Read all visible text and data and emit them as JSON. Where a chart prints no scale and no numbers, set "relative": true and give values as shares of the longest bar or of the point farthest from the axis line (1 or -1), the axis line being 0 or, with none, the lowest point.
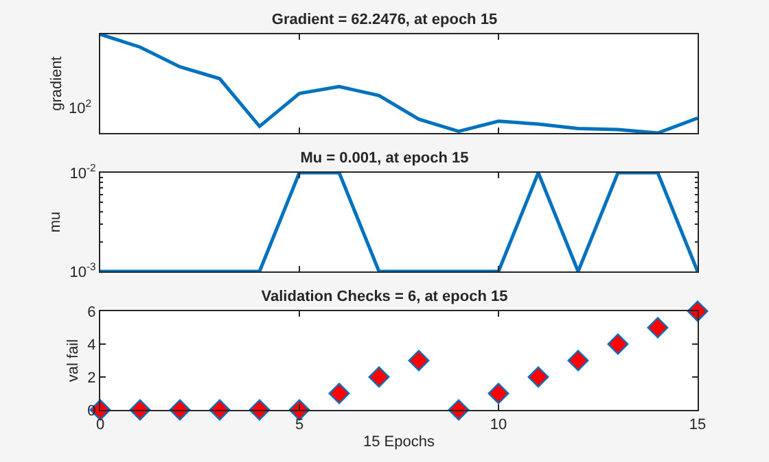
{
  "chart_data": [
    {
      "type": "line",
      "title": "Gradient = 62.2476, at epoch 15",
      "ylabel": "gradient",
      "relative": true,
      "tick_labels": "y",
      "grid": false,
      "marker": "none",
      "annotations": [
        "10$^{2}$"
      ],
      "x": [
        0,
        1,
        2,
        3,
        4,
        5,
        6,
        7,
        8,
        9,
        10,
        11,
        12,
        13,
        14,
        15
      ],
      "series": [
        {
          "color": "#0072bd",
          "values": [
            1,
            0.87,
            0.67,
            0.55,
            0.067,
            0.4,
            0.47,
            0.38,
            0.14,
            0.017,
            0.12,
            0.09,
            0.045,
            0.034,
            0,
            0.15
          ]
        }
      ],
      "xlim": [
        0,
        15
      ],
      "xticks": [
        0,
        5,
        10,
        15
      ]
    },
    {
      "type": "line",
      "title": "Mu = 0.001, at epoch 15",
      "ylabel": "mu",
      "log": true,
      "tick_labels": "y",
      "grid": false,
      "marker": "none",
      "x": [
        0,
        1,
        2,
        3,
        4,
        5,
        6,
        7,
        8,
        9,
        10,
        11,
        12,
        13,
        14,
        15
      ],
      "series": [
        {
          "color": "#0072bd",
          "values": [
            0.001,
            0.001,
            0.001,
            0.001,
            0.001,
            0.01,
            0.01,
            0.001,
            0.001,
            0.001,
            0.001,
            0.01,
            0.001,
            0.01,
            0.01,
            0.001
          ]
        }
      ],
      "xlim": [
        0,
        15
      ],
      "xticks": [
        0,
        5,
        10,
        15
      ],
      "ylim": [
        0.001,
        0.01
      ],
      "yticks": [
        {
          "value": 0.001,
          "label": "10$^{-3}$"
        },
        {
          "value": 0.01,
          "label": "10$^{-2}$"
        }
      ]
    },
    {
      "type": "scatter",
      "title": "Validation Checks = 6, at epoch 15",
      "xlabel": "15 Epochs",
      "ylabel": "val fail",
      "grid": false,
      "marker": "diamond",
      "x": [
        0,
        1,
        2,
        3,
        4,
        5,
        6,
        7,
        8,
        9,
        10,
        11,
        12,
        13,
        14,
        15
      ],
      "series": [
        {
          "color": "#ff0000",
          "values": [
            0,
            0,
            0,
            0,
            0,
            0,
            1,
            2,
            3,
            0,
            1,
            2,
            3,
            4,
            5,
            6
          ]
        }
      ],
      "xlim": [
        0,
        15
      ],
      "xticks": [
        0,
        5,
        10,
        15
      ],
      "ylim": [
        0,
        6
      ],
      "yticks": [
        0,
        2,
        4,
        6
      ]
    }
  ]
}
